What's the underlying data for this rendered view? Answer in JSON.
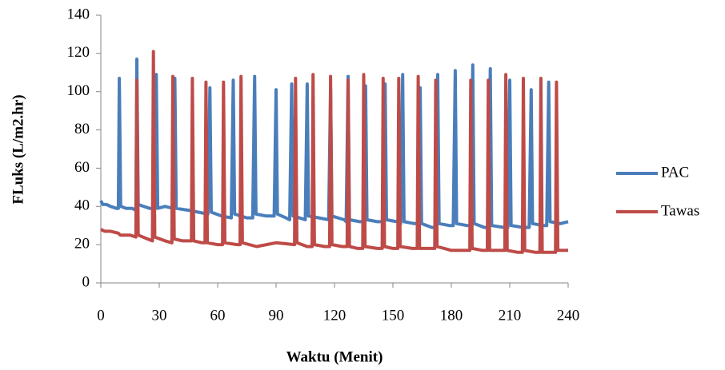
{
  "chart_data": {
    "type": "line",
    "x_label": "Waktu (Menit)",
    "y_label": "FLuks (L/m2.hr)",
    "xlim": [
      0,
      240
    ],
    "xticks": [
      0,
      30,
      60,
      90,
      120,
      150,
      180,
      210,
      240
    ],
    "ylim": [
      0,
      140
    ],
    "yticks": [
      0,
      20,
      40,
      60,
      80,
      100,
      120,
      140
    ],
    "legend": "right",
    "series": [
      {
        "name": "PAC",
        "color": "#4a7ebb",
        "x": [
          0,
          1,
          3,
          5,
          8,
          9,
          9.5,
          10.2,
          13,
          16,
          18,
          18.5,
          19.2,
          22,
          25,
          28,
          28.5,
          29.2,
          33,
          37,
          38,
          38.7,
          45,
          55,
          56,
          56.7,
          62,
          67,
          68,
          68.7,
          75,
          78,
          79,
          79.7,
          85,
          89,
          90,
          90.7,
          95,
          97,
          98,
          98.7,
          102,
          105,
          106,
          106.7,
          112,
          117,
          118,
          118.7,
          125,
          126,
          127,
          127.7,
          133,
          135,
          136,
          136.7,
          142,
          145,
          146,
          146.7,
          152,
          154,
          155,
          155.7,
          161,
          163,
          164,
          164.7,
          170,
          172,
          173,
          173.7,
          179,
          181,
          182,
          182.7,
          188,
          190,
          191,
          191.7,
          197,
          199,
          200,
          200.7,
          207,
          209,
          210,
          210.7,
          217,
          220,
          221,
          221.7,
          227,
          229,
          230,
          230.7,
          236,
          240
        ],
        "values": [
          43,
          41,
          41,
          40,
          39,
          39,
          107,
          40,
          39,
          39,
          38,
          117,
          41,
          40,
          39,
          39,
          109,
          39,
          40,
          39,
          107,
          39,
          38,
          36,
          102,
          37,
          35,
          34,
          106,
          36,
          34,
          34,
          108,
          36,
          35,
          35,
          101,
          36,
          34,
          33,
          104,
          35,
          34,
          33,
          104,
          35,
          34,
          33,
          102,
          35,
          33,
          32,
          108,
          33,
          32,
          32,
          103,
          33,
          32,
          32,
          104,
          33,
          32,
          31,
          109,
          32,
          31,
          31,
          102,
          31,
          29,
          29,
          109,
          31,
          30,
          30,
          111,
          31,
          30,
          30,
          114,
          31,
          29,
          29,
          112,
          30,
          29,
          29,
          106,
          30,
          29,
          29,
          101,
          31,
          30,
          30,
          105,
          32,
          31,
          32
        ]
      },
      {
        "name": "Tawas",
        "color": "#be4b48",
        "x": [
          0,
          2,
          5,
          9,
          10,
          15,
          18,
          18.5,
          19.2,
          24,
          26.5,
          27,
          27.7,
          33,
          36.5,
          37,
          37.7,
          42,
          46.5,
          47,
          47.7,
          52,
          53.5,
          54,
          54.7,
          60,
          62.5,
          63,
          63.7,
          70,
          71.5,
          72,
          72.7,
          80,
          90,
          99.5,
          100,
          100.7,
          106,
          108.5,
          109,
          109.7,
          115,
          117.5,
          118,
          118.7,
          124,
          126.5,
          127,
          127.7,
          132,
          134.5,
          135,
          135.7,
          142,
          144.5,
          145,
          145.7,
          150,
          152.5,
          153,
          153.7,
          160,
          162.5,
          163,
          163.7,
          169,
          171.5,
          172,
          172.7,
          180,
          189.5,
          190,
          190.7,
          196,
          198.5,
          199,
          199.7,
          205,
          207.5,
          208,
          208.7,
          214,
          216.5,
          217,
          217.7,
          223,
          225.5,
          226,
          226.7,
          232,
          233.5,
          234,
          234.7,
          240
        ],
        "values": [
          28,
          27,
          27,
          26,
          25,
          25,
          24,
          106,
          25,
          23,
          22,
          121,
          24,
          22,
          21,
          108,
          23,
          22,
          22,
          107,
          22,
          21,
          21,
          105,
          21,
          20,
          20,
          105,
          21,
          20,
          20,
          108,
          21,
          19,
          21,
          20,
          107,
          21,
          19,
          19,
          109,
          20,
          19,
          19,
          108,
          20,
          19,
          19,
          106,
          19,
          18,
          18,
          109,
          19,
          18,
          18,
          107,
          19,
          18,
          18,
          107,
          19,
          18,
          18,
          108,
          18,
          18,
          18,
          106,
          19,
          17,
          17,
          106,
          18,
          17,
          17,
          106,
          17,
          17,
          17,
          109,
          17,
          16,
          16,
          107,
          17,
          16,
          16,
          107,
          16,
          16,
          16,
          105,
          17,
          17
        ]
      }
    ]
  }
}
